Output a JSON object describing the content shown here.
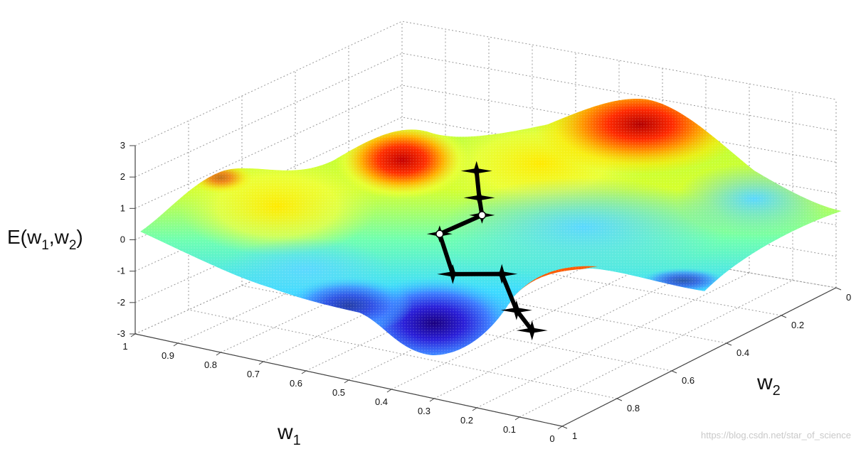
{
  "chart_data": {
    "type": "surface3d",
    "xlabel": "w",
    "xlabel_sub": "1",
    "ylabel": "w",
    "ylabel_sub": "2",
    "zlabel_prefix": "E(w",
    "zlabel_sub1": "1",
    "zlabel_mid": ",w",
    "zlabel_sub2": "2",
    "zlabel_suffix": ")",
    "x_range": [
      0,
      1
    ],
    "y_range": [
      0,
      1
    ],
    "zlim": [
      -3,
      3
    ],
    "x_ticks": [
      "1",
      "0.9",
      "0.8",
      "0.7",
      "0.6",
      "0.5",
      "0.4",
      "0.3",
      "0.2",
      "0.1",
      "0"
    ],
    "y_ticks": [
      "0",
      "0.2",
      "0.4",
      "0.6",
      "0.8",
      "1"
    ],
    "z_ticks": [
      "3",
      "2",
      "1",
      "0",
      "-1",
      "-2",
      "-3"
    ],
    "grid": true,
    "colormap": "jet",
    "path": [
      {
        "x": 0.47,
        "y": 0.42,
        "z": 1.9,
        "marker": "star"
      },
      {
        "x": 0.47,
        "y": 0.43,
        "z": 1.0,
        "marker": "star"
      },
      {
        "x": 0.47,
        "y": 0.44,
        "z": 0.4,
        "marker": "circle"
      },
      {
        "x": 0.55,
        "y": 0.41,
        "z": -0.3,
        "marker": "circle"
      },
      {
        "x": 0.5,
        "y": 0.38,
        "z": -1.3,
        "marker": "star"
      },
      {
        "x": 0.43,
        "y": 0.45,
        "z": -1.4,
        "marker": "star"
      },
      {
        "x": 0.37,
        "y": 0.41,
        "z": -2.2,
        "marker": "star"
      },
      {
        "x": 0.34,
        "y": 0.42,
        "z": -2.8,
        "marker": "star"
      }
    ]
  },
  "watermark": "https://blog.csdn.net/star_of_science"
}
